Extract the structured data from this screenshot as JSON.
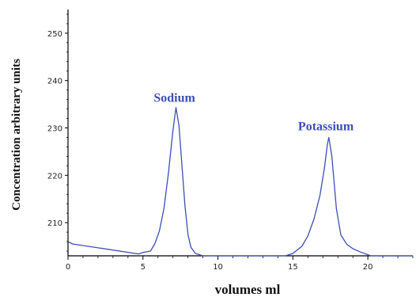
{
  "chart_data": {
    "type": "line",
    "xlabel": "volumes ml",
    "ylabel": "Concentration arbitrary units",
    "xlim": [
      0,
      23
    ],
    "ylim": [
      203,
      255
    ],
    "xticks": [
      0,
      5,
      10,
      15,
      20
    ],
    "yticks": [
      210,
      220,
      230,
      240,
      250
    ],
    "grid": false,
    "annotations": [
      {
        "text": "Sodium",
        "x": 7.1,
        "y": 235.5
      },
      {
        "text": "Potassium",
        "x": 17.2,
        "y": 229.5
      }
    ],
    "series": [
      {
        "color": "#3c4fb5",
        "x": [
          0.0,
          0.3,
          4.7,
          5.0,
          5.5,
          5.8,
          6.1,
          6.4,
          6.7,
          7.0,
          7.2,
          7.4,
          7.6,
          7.8,
          8.0,
          8.2,
          8.5,
          9.0,
          14.5,
          15.0,
          15.6,
          16.0,
          16.4,
          16.8,
          17.1,
          17.3,
          17.4,
          17.6,
          17.9,
          18.2,
          18.6,
          19.0,
          19.5,
          20.2,
          23.0
        ],
        "y": [
          206,
          205.5,
          203.4,
          203.7,
          204.0,
          205.6,
          208.3,
          213.0,
          220.5,
          229.5,
          234.3,
          230.5,
          222.0,
          213.5,
          207.5,
          204.8,
          203.5,
          203.0,
          203.0,
          203.5,
          205.0,
          207.2,
          210.7,
          215.7,
          221.5,
          226.5,
          228.0,
          224.0,
          213.0,
          207.4,
          205.4,
          204.5,
          203.8,
          203.0,
          203.0
        ]
      }
    ]
  }
}
